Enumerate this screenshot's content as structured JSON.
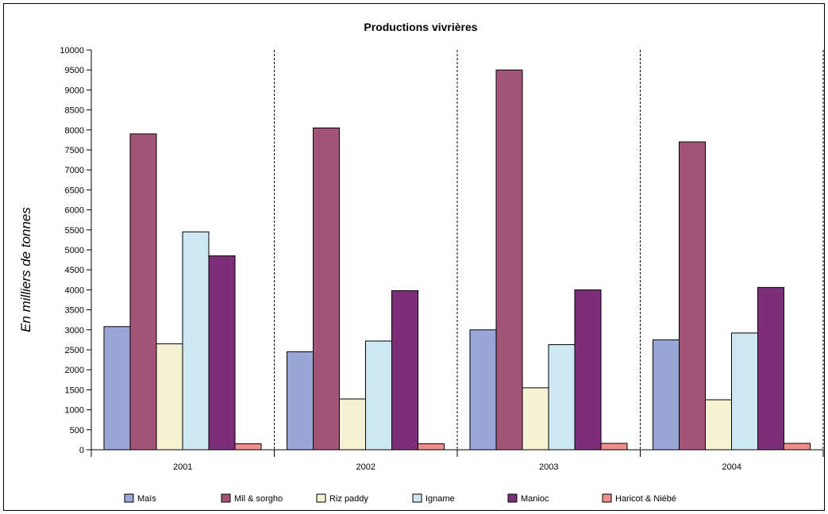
{
  "chart_data": {
    "type": "bar",
    "title": "Productions vivrières",
    "xlabel": "",
    "ylabel": "En milliers de tonnes",
    "ylim": [
      0,
      10000
    ],
    "ytick_step": 500,
    "grid": "vertical dashed category separators",
    "legend_position": "bottom",
    "categories": [
      "2001",
      "2002",
      "2003",
      "2004"
    ],
    "series": [
      {
        "name": "Maïs",
        "color": "#9aa6d6",
        "values": [
          3080,
          2450,
          3000,
          2750
        ]
      },
      {
        "name": "Mil & sorgho",
        "color": "#a35577",
        "values": [
          7900,
          8050,
          9500,
          7700
        ]
      },
      {
        "name": "Riz paddy",
        "color": "#f4f2d2",
        "values": [
          2650,
          1270,
          1550,
          1250
        ]
      },
      {
        "name": "Igname",
        "color": "#cde8f2",
        "values": [
          5450,
          2720,
          2630,
          2920
        ]
      },
      {
        "name": "Manioc",
        "color": "#7d2e79",
        "values": [
          4850,
          3980,
          4000,
          4060
        ]
      },
      {
        "name": "Haricot & Niébé",
        "color": "#ef8f8c",
        "values": [
          150,
          150,
          160,
          160
        ]
      }
    ]
  }
}
